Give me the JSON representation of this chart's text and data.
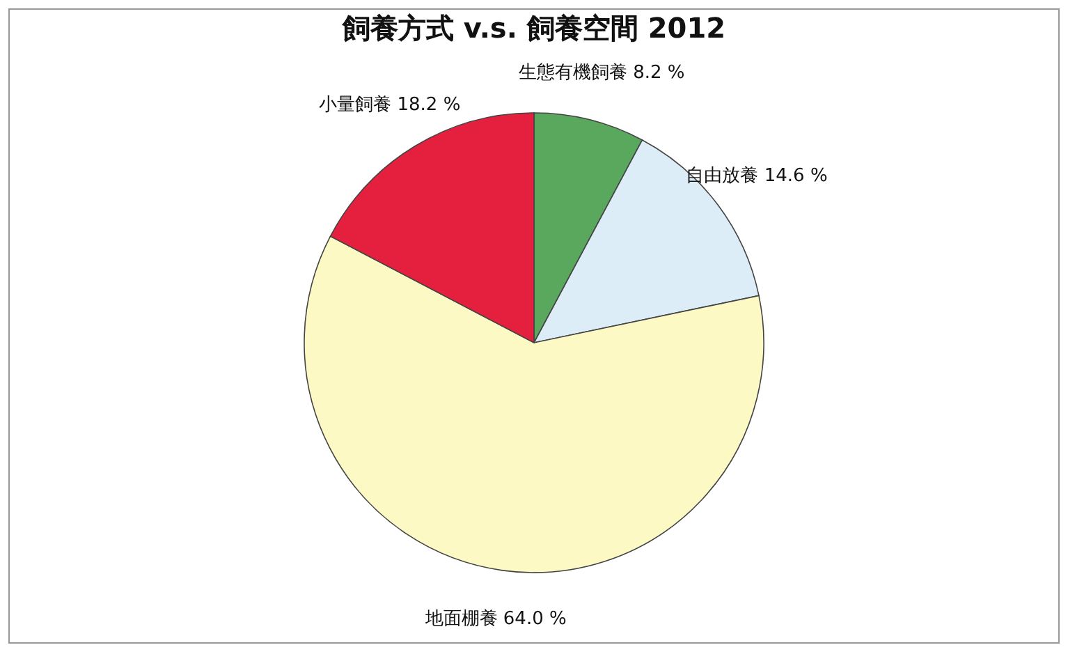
{
  "chart_data": {
    "type": "pie",
    "title": "飼養方式 v.s. 飼養空間 2012",
    "categories": [
      "生態有機飼養",
      "自由放養",
      "地面棚養",
      "小量飼養"
    ],
    "values": [
      8.2,
      14.6,
      64.0,
      18.2
    ],
    "value_labels": [
      "8.2 %",
      "14.6 %",
      "64.0 %",
      "18.2 %"
    ],
    "colors": [
      "#5aa85e",
      "#dcedf7",
      "#fdf9c4",
      "#e5203f"
    ],
    "legend": false
  }
}
